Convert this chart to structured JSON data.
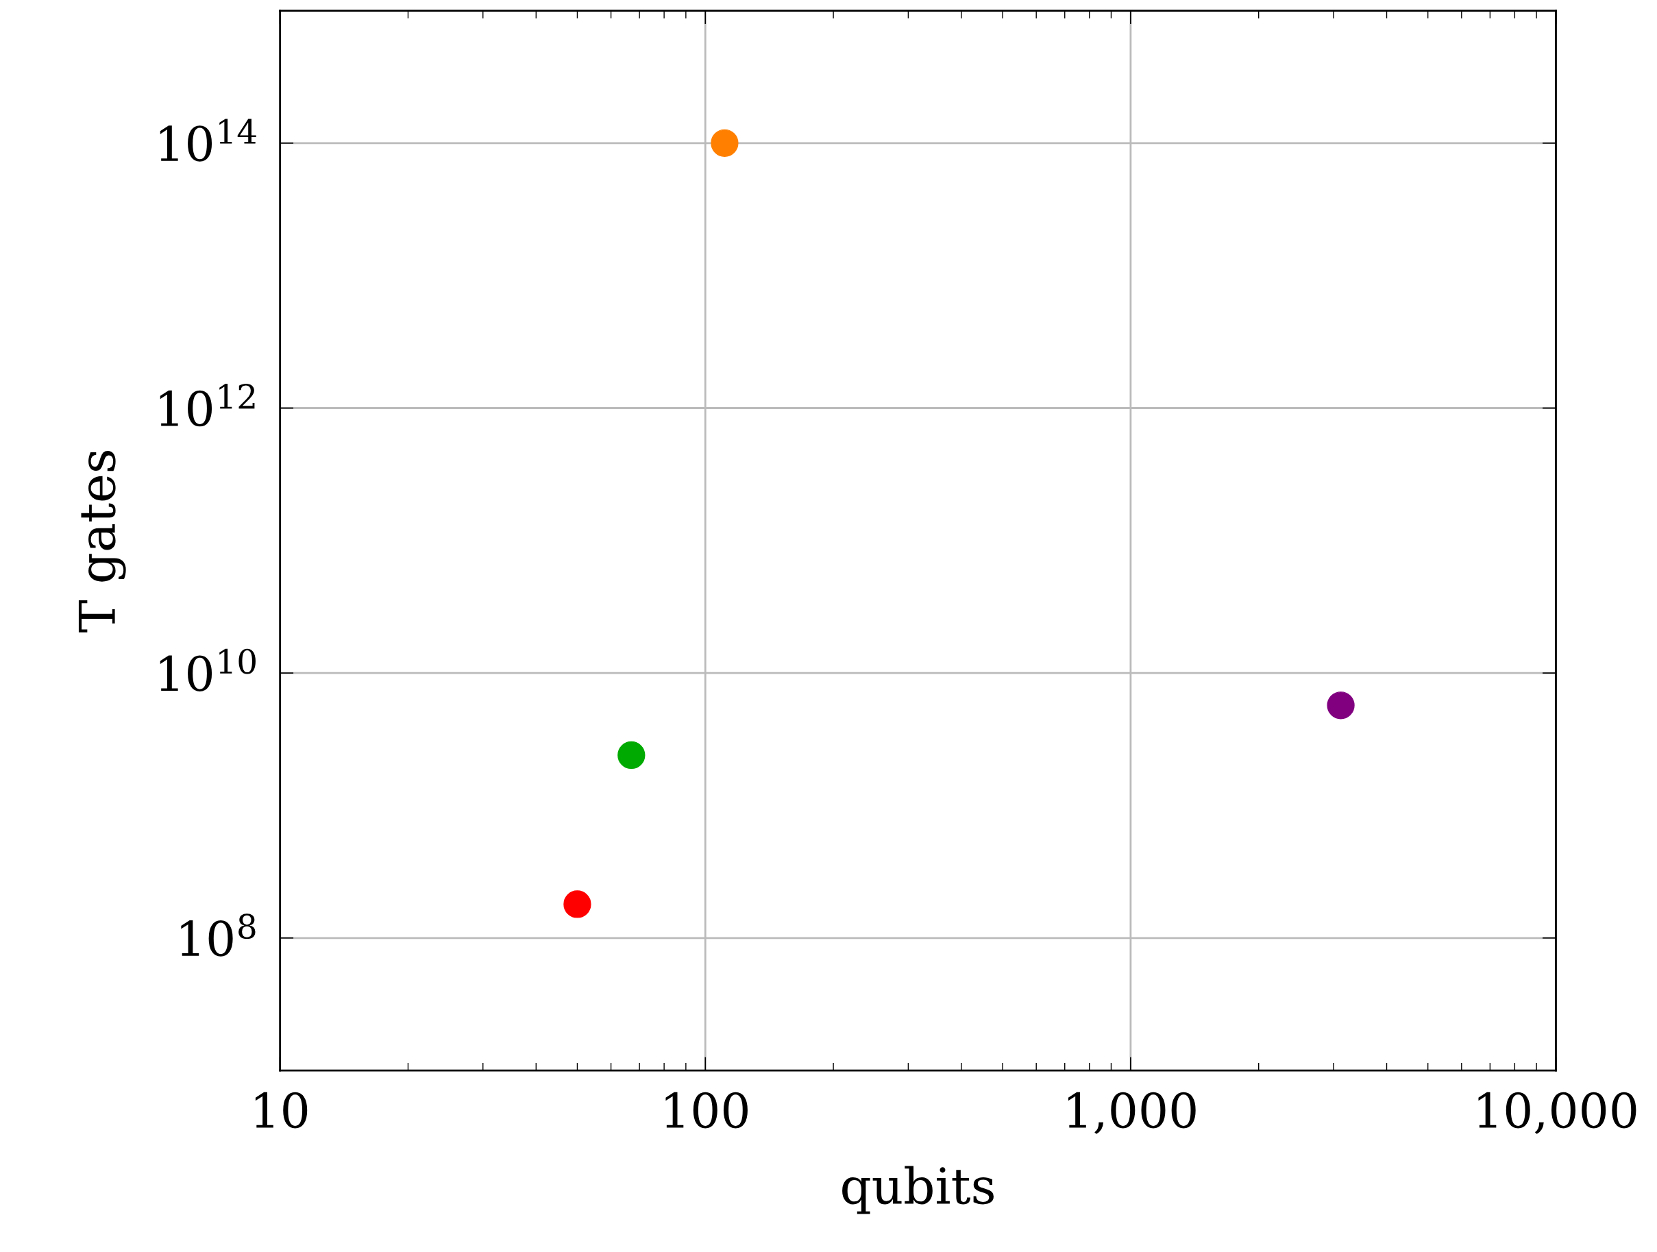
{
  "chart_data": {
    "type": "scatter",
    "xlabel": "qubits",
    "ylabel": "T gates",
    "log": "xy",
    "grid": true,
    "marker": "circle",
    "xlim": [
      10,
      10000
    ],
    "xticks": [
      {
        "value": 10,
        "label": "10"
      },
      {
        "value": 100,
        "label": "100"
      },
      {
        "value": 1000,
        "label": "1,000"
      },
      {
        "value": 10000,
        "label": "10,000"
      }
    ],
    "ylim": [
      10000000.0,
      1000000000000000.0
    ],
    "yticks": [
      {
        "value": 100000000.0,
        "label": "10$^{8}$"
      },
      {
        "value": 10000000000.0,
        "label": "10$^{10}$"
      },
      {
        "value": 1000000000000.0,
        "label": "10$^{12}$"
      },
      {
        "value": 100000000000000.0,
        "label": "10$^{14}$"
      }
    ],
    "series": [
      {
        "color": "#ff0000",
        "x": [
          50
        ],
        "values": [
          180000000.0
        ]
      },
      {
        "color": "#00aa00",
        "x": [
          67
        ],
        "values": [
          2400000000.0
        ]
      },
      {
        "color": "#ff8000",
        "x": [
          111
        ],
        "values": [
          100000000000000.0
        ]
      },
      {
        "color": "#800080",
        "x": [
          3120
        ],
        "values": [
          5700000000.0
        ]
      }
    ]
  }
}
